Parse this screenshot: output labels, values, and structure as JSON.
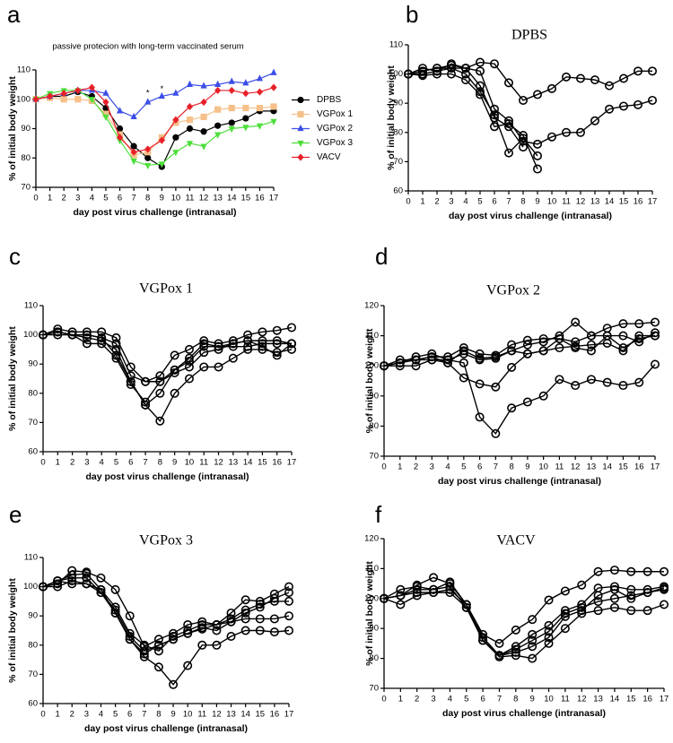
{
  "chart_data": [
    {
      "type": "line",
      "panel_label": "a",
      "title": "passive protecion with long-term vaccinated serum",
      "x_label": "day post virus challenge (intranasal)",
      "y_label": "% of initial body weight",
      "x": [
        0,
        1,
        2,
        3,
        4,
        5,
        6,
        7,
        8,
        9,
        10,
        11,
        12,
        13,
        14,
        15,
        16,
        17
      ],
      "xlim": [
        0,
        17
      ],
      "xticks": [
        0,
        1,
        2,
        3,
        4,
        5,
        6,
        7,
        8,
        9,
        10,
        11,
        12,
        13,
        14,
        15,
        16,
        17
      ],
      "ylim": [
        70,
        110
      ],
      "yticks": [
        70,
        80,
        90,
        100,
        110
      ],
      "legend": "right",
      "annotations": [
        {
          "text": "*",
          "x": 8,
          "y": 102
        },
        {
          "text": "*",
          "x": 9,
          "y": 103.5
        }
      ],
      "series": [
        {
          "name": "DPBS",
          "color": "#000000",
          "marker": "circle",
          "values": [
            100,
            101,
            101,
            102.5,
            101,
            97,
            90,
            84,
            80,
            77,
            87,
            90,
            89,
            91,
            92,
            93.5,
            96,
            96
          ]
        },
        {
          "name": "VGPox 1",
          "color": "#f5c08a",
          "marker": "square",
          "values": [
            100,
            100.5,
            100,
            100,
            99.5,
            95,
            88,
            81,
            82,
            87,
            92,
            93,
            94,
            96.5,
            97,
            97,
            97,
            97.5
          ]
        },
        {
          "name": "VGPox 2",
          "color": "#3b4ee8",
          "marker": "triangle",
          "values": [
            100,
            101,
            102,
            103,
            103,
            102,
            96,
            94,
            99,
            101,
            102,
            105,
            104.5,
            105,
            106,
            105.5,
            107,
            109
          ]
        },
        {
          "name": "VGPox 3",
          "color": "#4ddf3b",
          "marker": "triangle-down",
          "values": [
            100,
            102,
            103,
            103,
            100,
            94,
            86,
            79,
            77.5,
            78,
            82,
            85,
            84,
            88,
            90,
            90.5,
            91,
            92.5
          ]
        },
        {
          "name": "VACV",
          "color": "#e8202a",
          "marker": "diamond",
          "values": [
            100,
            101,
            102,
            103,
            104,
            99,
            87,
            82,
            83,
            86,
            93,
            97.5,
            99,
            103,
            103,
            102,
            102.5,
            104
          ]
        }
      ]
    },
    {
      "type": "line",
      "panel_label": "b",
      "title": "DPBS",
      "x_label": "day post virus challenge (intranasal)",
      "y_label": "% of initial body weight",
      "x": [
        0,
        1,
        2,
        3,
        4,
        5,
        6,
        7,
        8,
        9,
        10,
        11,
        12,
        13,
        14,
        15,
        16,
        17
      ],
      "xlim": [
        0,
        17
      ],
      "xticks": [
        0,
        1,
        2,
        3,
        4,
        5,
        6,
        7,
        8,
        9,
        10,
        11,
        12,
        13,
        14,
        15,
        16,
        17
      ],
      "ylim": [
        60,
        110
      ],
      "yticks": [
        60,
        70,
        80,
        90,
        100,
        110
      ],
      "series": [
        {
          "color": "#000000",
          "marker": "open-circle",
          "values": [
            100,
            101,
            102,
            102,
            102,
            104,
            103.5,
            97,
            91,
            93,
            95,
            99,
            98.5,
            98,
            96,
            98.5,
            101,
            101
          ]
        },
        {
          "color": "#000000",
          "marker": "open-circle",
          "values": [
            100,
            102,
            101,
            103.5,
            102,
            101,
            88,
            84,
            77,
            76,
            78.5,
            80,
            80,
            84,
            88,
            89,
            89.5,
            91
          ]
        },
        {
          "color": "#000000",
          "marker": "open-circle",
          "values": [
            100,
            100,
            101,
            102,
            100,
            94,
            86,
            73,
            78,
            72,
            null,
            null,
            null,
            null,
            null,
            null,
            null,
            null
          ]
        },
        {
          "color": "#000000",
          "marker": "open-circle",
          "values": [
            100,
            99.5,
            100,
            100,
            98,
            93,
            82,
            83,
            79,
            67.5,
            null,
            null,
            null,
            null,
            null,
            null,
            null,
            null
          ]
        },
        {
          "color": "#000000",
          "marker": "open-circle",
          "values": [
            100,
            101,
            102,
            103,
            102,
            96,
            85,
            82,
            75,
            null,
            null,
            null,
            null,
            null,
            null,
            null,
            null,
            null
          ]
        }
      ]
    },
    {
      "type": "line",
      "panel_label": "c",
      "title": "VGPox 1",
      "x_label": "day post virus challenge (intranasal)",
      "y_label": "% of initial body weight",
      "x": [
        0,
        1,
        2,
        3,
        4,
        5,
        6,
        7,
        8,
        9,
        10,
        11,
        12,
        13,
        14,
        15,
        16,
        17
      ],
      "xlim": [
        0,
        17
      ],
      "xticks": [
        0,
        1,
        2,
        3,
        4,
        5,
        6,
        7,
        8,
        9,
        10,
        11,
        12,
        13,
        14,
        15,
        16,
        17
      ],
      "ylim": [
        60,
        110
      ],
      "yticks": [
        60,
        70,
        80,
        90,
        100,
        110
      ],
      "series": [
        {
          "color": "#000000",
          "marker": "open-circle",
          "values": [
            100,
            102,
            101,
            101,
            101,
            99,
            89,
            84,
            86,
            93,
            95,
            98,
            97,
            98,
            100,
            101,
            101.5,
            102.5
          ]
        },
        {
          "color": "#000000",
          "marker": "open-circle",
          "values": [
            100,
            101,
            100,
            100,
            99,
            97,
            86,
            84,
            84,
            88,
            92,
            97,
            96,
            97,
            98,
            98,
            98,
            97
          ]
        },
        {
          "color": "#000000",
          "marker": "open-circle",
          "values": [
            100,
            100,
            100,
            99,
            98,
            95,
            84,
            76,
            80,
            88,
            91,
            96,
            96,
            96,
            96,
            97,
            97,
            97
          ]
        },
        {
          "color": "#000000",
          "marker": "open-circle",
          "values": [
            100,
            101,
            100,
            100,
            99,
            93,
            84,
            76,
            70.5,
            80,
            85,
            89,
            89,
            92,
            95,
            95,
            94,
            95
          ]
        },
        {
          "color": "#000000",
          "marker": "open-circle",
          "values": [
            100,
            101,
            100,
            97,
            97,
            92,
            83,
            77,
            84,
            87,
            89,
            94,
            95,
            97,
            98,
            96,
            93,
            97
          ]
        }
      ]
    },
    {
      "type": "line",
      "panel_label": "d",
      "title": "VGPox 2",
      "x_label": "day post virus challenge (intranasal)",
      "y_label": "% of initial body weight",
      "x": [
        0,
        1,
        2,
        3,
        4,
        5,
        6,
        7,
        8,
        9,
        10,
        11,
        12,
        13,
        14,
        15,
        16,
        17
      ],
      "xlim": [
        0,
        17
      ],
      "xticks": [
        0,
        1,
        2,
        3,
        4,
        5,
        6,
        7,
        8,
        9,
        10,
        11,
        12,
        13,
        14,
        15,
        16,
        17
      ],
      "ylim": [
        70,
        120
      ],
      "yticks": [
        70,
        80,
        90,
        100,
        110,
        120
      ],
      "series": [
        {
          "color": "#000000",
          "marker": "open-circle",
          "values": [
            100,
            101,
            102,
            103,
            103,
            106,
            104,
            103.5,
            107,
            108.5,
            109,
            109,
            108,
            110,
            112.5,
            114,
            114,
            114.5
          ]
        },
        {
          "color": "#000000",
          "marker": "open-circle",
          "values": [
            100,
            101,
            103,
            104,
            102,
            104,
            102,
            102.5,
            105,
            107,
            108,
            110,
            114.5,
            110,
            110,
            110,
            108,
            111
          ]
        },
        {
          "color": "#000000",
          "marker": "open-circle",
          "values": [
            100,
            102,
            102,
            102,
            101,
            105,
            102.5,
            103,
            105,
            104,
            105,
            106,
            106.5,
            107,
            107.5,
            105,
            110,
            110
          ]
        },
        {
          "color": "#000000",
          "marker": "open-circle",
          "values": [
            100,
            101,
            102,
            103,
            101,
            96,
            94,
            93,
            99.5,
            104,
            105,
            109,
            106,
            105,
            110,
            106,
            109,
            110
          ]
        },
        {
          "color": "#000000",
          "marker": "open-circle",
          "values": [
            100,
            100,
            100,
            102,
            102,
            101,
            83,
            77.5,
            86,
            88,
            90,
            95.5,
            93.5,
            95.5,
            94.5,
            93.5,
            94.5,
            100.5
          ]
        }
      ]
    },
    {
      "type": "line",
      "panel_label": "e",
      "title": "VGPox 3",
      "x_label": "day post virus challenge (intranasal)",
      "y_label": "% of initial body weight",
      "x": [
        0,
        1,
        2,
        3,
        4,
        5,
        6,
        7,
        8,
        9,
        10,
        11,
        12,
        13,
        14,
        15,
        16,
        17
      ],
      "xlim": [
        0,
        17
      ],
      "xticks": [
        0,
        1,
        2,
        3,
        4,
        5,
        6,
        7,
        8,
        9,
        10,
        11,
        12,
        13,
        14,
        15,
        16,
        17
      ],
      "ylim": [
        60,
        110
      ],
      "yticks": [
        60,
        70,
        80,
        90,
        100,
        110
      ],
      "series": [
        {
          "color": "#000000",
          "marker": "open-circle",
          "values": [
            100,
            101,
            105.5,
            105,
            103,
            99,
            90,
            79.5,
            82,
            84,
            87,
            88,
            87,
            91,
            95.5,
            95,
            97.5,
            100
          ]
        },
        {
          "color": "#000000",
          "marker": "open-circle",
          "values": [
            100,
            102,
            104,
            104.5,
            99,
            93,
            84,
            80,
            78,
            83,
            85,
            87,
            87,
            89,
            92,
            94,
            95,
            95
          ]
        },
        {
          "color": "#000000",
          "marker": "open-circle",
          "values": [
            100,
            102,
            103,
            103,
            98,
            92,
            83,
            78,
            80,
            82,
            84,
            86,
            85,
            88,
            89,
            89,
            89,
            90
          ]
        },
        {
          "color": "#000000",
          "marker": "open-circle",
          "values": [
            100,
            100,
            102,
            101,
            98,
            91,
            82,
            76,
            72.5,
            66.5,
            73,
            80,
            80,
            83,
            85,
            85,
            84.5,
            85
          ]
        },
        {
          "color": "#000000",
          "marker": "open-circle",
          "values": [
            100,
            102,
            101,
            101,
            99,
            91,
            82,
            77,
            80,
            82,
            84,
            85.5,
            87,
            88,
            91,
            93,
            96,
            98
          ]
        }
      ]
    },
    {
      "type": "line",
      "panel_label": "f",
      "title": "VACV",
      "x_label": "day post virus challenge (intranasal)",
      "y_label": "% of initial body weight",
      "x": [
        0,
        1,
        2,
        3,
        4,
        5,
        6,
        7,
        8,
        9,
        10,
        11,
        12,
        13,
        14,
        15,
        16,
        17
      ],
      "xlim": [
        0,
        17
      ],
      "xticks": [
        0,
        1,
        2,
        3,
        4,
        5,
        6,
        7,
        8,
        9,
        10,
        11,
        12,
        13,
        14,
        15,
        16,
        17
      ],
      "ylim": [
        70,
        120
      ],
      "yticks": [
        70,
        80,
        90,
        100,
        110,
        120
      ],
      "series": [
        {
          "color": "#000000",
          "marker": "open-circle",
          "values": [
            100,
            101,
            104.5,
            107,
            105,
            98,
            88,
            85,
            89.5,
            93,
            99.5,
            102.5,
            104.5,
            109,
            109.5,
            109,
            109,
            109
          ]
        },
        {
          "color": "#000000",
          "marker": "open-circle",
          "values": [
            100,
            103,
            104,
            103,
            105.5,
            98,
            87,
            81,
            84,
            88,
            91,
            96,
            98,
            103.5,
            104,
            103,
            103,
            104
          ]
        },
        {
          "color": "#000000",
          "marker": "open-circle",
          "values": [
            100,
            101,
            103,
            103,
            104,
            97,
            86,
            81,
            82,
            84,
            87,
            94,
            96,
            101,
            103,
            100,
            102,
            103.5
          ]
        },
        {
          "color": "#000000",
          "marker": "open-circle",
          "values": [
            100,
            98,
            101,
            102,
            103,
            98,
            86,
            80.5,
            81,
            80,
            85,
            90,
            95,
            96,
            97,
            96,
            96,
            98
          ]
        },
        {
          "color": "#000000",
          "marker": "open-circle",
          "values": [
            100,
            101,
            102,
            102,
            102,
            97,
            86,
            81,
            83,
            86,
            89,
            95,
            97,
            99,
            100,
            101,
            102,
            103
          ]
        }
      ]
    }
  ]
}
